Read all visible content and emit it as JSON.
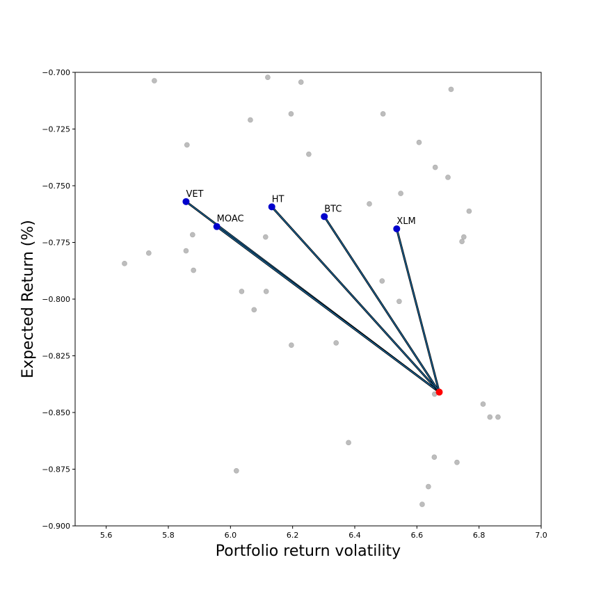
{
  "chart_data": {
    "type": "scatter",
    "title": "",
    "xlabel": "Portfolio return volatility",
    "ylabel": "Expected Return (%)",
    "xlim": [
      5.5,
      7.0
    ],
    "ylim": [
      -0.9,
      -0.7
    ],
    "xticks": [
      5.6,
      5.8,
      6.0,
      6.2,
      6.4,
      6.6,
      6.8,
      7.0
    ],
    "xtick_labels": [
      "5.6",
      "5.8",
      "6.0",
      "6.2",
      "6.4",
      "6.6",
      "6.8",
      "7.0"
    ],
    "yticks": [
      -0.7,
      -0.725,
      -0.75,
      -0.775,
      -0.8,
      -0.825,
      -0.85,
      -0.875,
      -0.9
    ],
    "ytick_labels": [
      "−0.700",
      "−0.725",
      "−0.750",
      "−0.775",
      "−0.800",
      "−0.825",
      "−0.850",
      "−0.875",
      "−0.900"
    ],
    "grid": false,
    "background_points": {
      "color": "#bdbdbd",
      "points": [
        [
          5.755,
          -0.7037
        ],
        [
          6.12,
          -0.7022
        ],
        [
          6.227,
          -0.7043
        ],
        [
          6.71,
          -0.7075
        ],
        [
          6.195,
          -0.7183
        ],
        [
          6.064,
          -0.721
        ],
        [
          6.491,
          -0.7183
        ],
        [
          5.86,
          -0.732
        ],
        [
          6.252,
          -0.7361
        ],
        [
          6.607,
          -0.7309
        ],
        [
          6.659,
          -0.7419
        ],
        [
          6.7,
          -0.7463
        ],
        [
          6.548,
          -0.7534
        ],
        [
          6.447,
          -0.758
        ],
        [
          6.768,
          -0.7612
        ],
        [
          5.878,
          -0.7716
        ],
        [
          6.113,
          -0.7726
        ],
        [
          6.751,
          -0.7726
        ],
        [
          6.745,
          -0.7746
        ],
        [
          5.857,
          -0.7787
        ],
        [
          5.737,
          -0.7797
        ],
        [
          5.659,
          -0.7843
        ],
        [
          5.881,
          -0.7873
        ],
        [
          6.488,
          -0.792
        ],
        [
          6.036,
          -0.7966
        ],
        [
          6.115,
          -0.7966
        ],
        [
          6.543,
          -0.801
        ],
        [
          6.076,
          -0.8047
        ],
        [
          6.196,
          -0.8203
        ],
        [
          6.34,
          -0.8193
        ],
        [
          6.657,
          -0.8419
        ],
        [
          6.813,
          -0.8463
        ],
        [
          6.835,
          -0.852
        ],
        [
          6.861,
          -0.852
        ],
        [
          6.38,
          -0.8633
        ],
        [
          6.656,
          -0.8697
        ],
        [
          6.729,
          -0.872
        ],
        [
          6.019,
          -0.8757
        ],
        [
          6.637,
          -0.8827
        ],
        [
          6.617,
          -0.8905
        ]
      ]
    },
    "origin_point": {
      "x": 6.672,
      "y": -0.841,
      "color": "#ff0000"
    },
    "assets": {
      "color": "#0000cc",
      "items": [
        {
          "name": "VET",
          "x": 5.857,
          "y": -0.757
        },
        {
          "name": "MOAC",
          "x": 5.956,
          "y": -0.768
        },
        {
          "name": "HT",
          "x": 6.133,
          "y": -0.7593
        },
        {
          "name": "BTC",
          "x": 6.302,
          "y": -0.7636
        },
        {
          "name": "XLM",
          "x": 6.535,
          "y": -0.769
        }
      ]
    },
    "line_colors": [
      "#000000",
      "#1f77b4"
    ]
  }
}
